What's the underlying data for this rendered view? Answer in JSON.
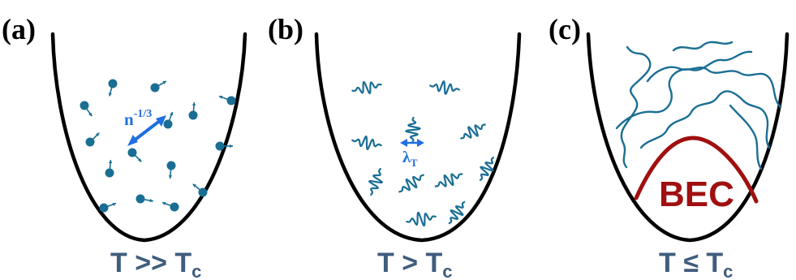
{
  "colors": {
    "particle": "#1a6e94",
    "annotation": "#1f6fe0",
    "caption": "#3f5d7d",
    "bec": "#a01010",
    "trap": "#000000"
  },
  "panels": [
    {
      "label": "(a)",
      "caption_main": "T >> T",
      "caption_sub": "c",
      "annotation_main": "n",
      "annotation_sup": "-1/3",
      "content": "classical-particles"
    },
    {
      "label": "(b)",
      "caption_main": "T > T",
      "caption_sub": "c",
      "annotation_main": "λ",
      "annotation_sub": "T",
      "content": "wave-packets"
    },
    {
      "label": "(c)",
      "caption_main": "T ≤ T",
      "caption_sub": "c",
      "bec_label": "BEC",
      "content": "matter-wave-condensate"
    }
  ]
}
